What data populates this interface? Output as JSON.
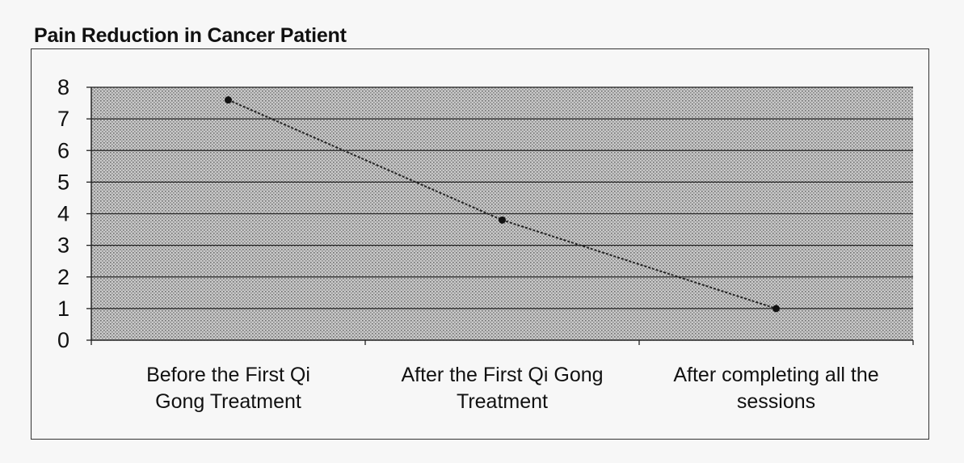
{
  "chart_data": {
    "type": "line",
    "title": "Pain Reduction in Cancer Patient",
    "xlabel": "",
    "ylabel": "",
    "categories": [
      [
        "Before the First Qi",
        "Gong Treatment"
      ],
      [
        "After the First Qi Gong",
        "Treatment"
      ],
      [
        "After completing all the",
        "sessions"
      ]
    ],
    "series": [
      {
        "values": [
          7.6,
          3.8,
          1.0
        ]
      }
    ],
    "ylim": [
      0,
      8
    ],
    "yticks": [
      "0",
      "1",
      "2",
      "3",
      "4",
      "5",
      "6",
      "7",
      "8"
    ],
    "grid": "horizontal",
    "plot_background": "dotted gray",
    "colors": {
      "line": "#222222",
      "grid": "#222222",
      "plot_fill": "#bdbdbd"
    }
  }
}
